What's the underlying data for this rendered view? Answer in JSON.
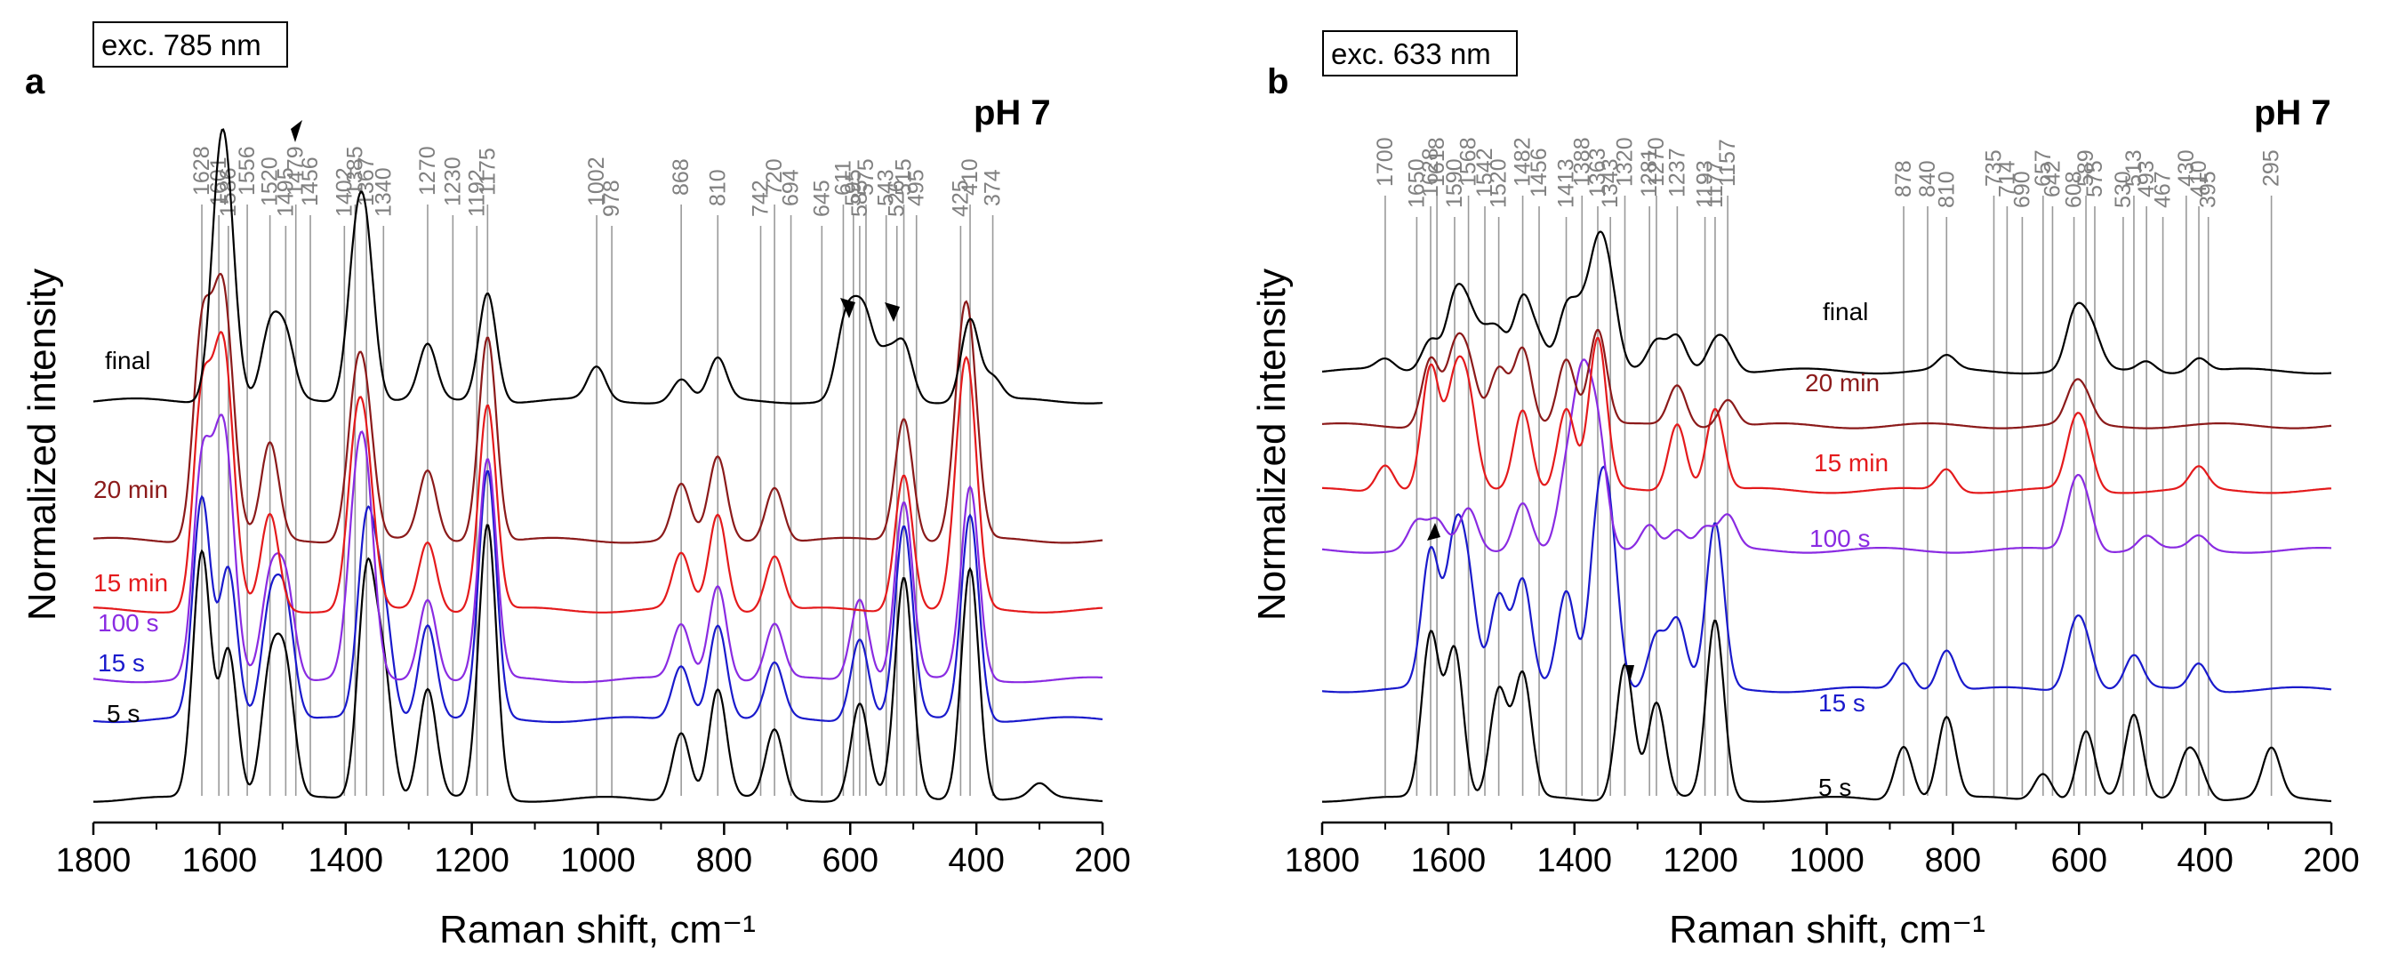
{
  "chart_data": [
    {
      "type": "line",
      "panel": "a",
      "excitation": "exc. 785 nm",
      "ph_label": "pH 7",
      "xlabel": "Raman shift, cm⁻¹",
      "ylabel": "Normalized intensity",
      "xlim": [
        1800,
        200
      ],
      "xticks": [
        1800,
        1600,
        1400,
        1200,
        1000,
        800,
        600,
        400,
        200
      ],
      "series": [
        {
          "name": "5 s",
          "color": "#000000",
          "offset": 0,
          "peaks": [
            [
              1628,
              0.9
            ],
            [
              1586,
              0.55
            ],
            [
              1520,
              0.45
            ],
            [
              1495,
              0.45
            ],
            [
              1367,
              0.8
            ],
            [
              1340,
              0.45
            ],
            [
              1270,
              0.4
            ],
            [
              1175,
              1.0
            ],
            [
              868,
              0.25
            ],
            [
              810,
              0.4
            ],
            [
              720,
              0.25
            ],
            [
              585,
              0.35
            ],
            [
              515,
              0.8
            ],
            [
              410,
              0.85
            ],
            [
              300,
              0.05
            ]
          ]
        },
        {
          "name": "15 s",
          "color": "#1a1acc",
          "offset": 0.16,
          "peaks": [
            [
              1628,
              0.8
            ],
            [
              1586,
              0.55
            ],
            [
              1520,
              0.4
            ],
            [
              1495,
              0.4
            ],
            [
              1367,
              0.7
            ],
            [
              1340,
              0.4
            ],
            [
              1270,
              0.35
            ],
            [
              1175,
              0.9
            ],
            [
              868,
              0.2
            ],
            [
              810,
              0.35
            ],
            [
              720,
              0.2
            ],
            [
              585,
              0.3
            ],
            [
              515,
              0.7
            ],
            [
              410,
              0.75
            ]
          ]
        },
        {
          "name": "100 s",
          "color": "#8a2be2",
          "offset": 0.24,
          "peaks": [
            [
              1628,
              0.75
            ],
            [
              1601,
              0.55
            ],
            [
              1586,
              0.5
            ],
            [
              1520,
              0.35
            ],
            [
              1495,
              0.35
            ],
            [
              1385,
              0.5
            ],
            [
              1367,
              0.6
            ],
            [
              1270,
              0.3
            ],
            [
              1175,
              0.8
            ],
            [
              868,
              0.2
            ],
            [
              810,
              0.35
            ],
            [
              720,
              0.2
            ],
            [
              585,
              0.3
            ],
            [
              515,
              0.65
            ],
            [
              410,
              0.7
            ]
          ]
        },
        {
          "name": "15 min",
          "color": "#e41a1c",
          "offset": 0.38,
          "peaks": [
            [
              1628,
              0.75
            ],
            [
              1601,
              0.6
            ],
            [
              1586,
              0.5
            ],
            [
              1520,
              0.35
            ],
            [
              1385,
              0.5
            ],
            [
              1367,
              0.45
            ],
            [
              1270,
              0.25
            ],
            [
              1175,
              0.75
            ],
            [
              868,
              0.2
            ],
            [
              810,
              0.35
            ],
            [
              720,
              0.2
            ],
            [
              515,
              0.5
            ],
            [
              425,
              0.45
            ],
            [
              410,
              0.6
            ]
          ]
        },
        {
          "name": "20 min",
          "color": "#8b1a1a",
          "offset": 0.52,
          "peaks": [
            [
              1628,
              0.75
            ],
            [
              1601,
              0.6
            ],
            [
              1586,
              0.45
            ],
            [
              1520,
              0.35
            ],
            [
              1385,
              0.45
            ],
            [
              1367,
              0.4
            ],
            [
              1270,
              0.25
            ],
            [
              1175,
              0.75
            ],
            [
              868,
              0.2
            ],
            [
              810,
              0.3
            ],
            [
              720,
              0.2
            ],
            [
              515,
              0.45
            ],
            [
              425,
              0.45
            ],
            [
              410,
              0.55
            ]
          ]
        },
        {
          "name": "final",
          "color": "#000000",
          "offset": 0.8,
          "peaks": [
            [
              1601,
              0.65
            ],
            [
              1586,
              0.5
            ],
            [
              1520,
              0.25
            ],
            [
              1495,
              0.22
            ],
            [
              1385,
              0.45
            ],
            [
              1367,
              0.5
            ],
            [
              1270,
              0.2
            ],
            [
              1175,
              0.4
            ],
            [
              1002,
              0.12
            ],
            [
              868,
              0.08
            ],
            [
              810,
              0.15
            ],
            [
              611,
              0.2
            ],
            [
              595,
              0.18
            ],
            [
              575,
              0.25
            ],
            [
              543,
              0.15
            ],
            [
              515,
              0.2
            ],
            [
              410,
              0.3
            ],
            [
              374,
              0.08
            ]
          ]
        }
      ],
      "peak_labels": [
        {
          "x": 1628,
          "label": "1628"
        },
        {
          "x": 1601,
          "label": "1601"
        },
        {
          "x": 1586,
          "label": "1586"
        },
        {
          "x": 1556,
          "label": "1556"
        },
        {
          "x": 1520,
          "label": "1520"
        },
        {
          "x": 1495,
          "label": "1495"
        },
        {
          "x": 1479,
          "label": "1479"
        },
        {
          "x": 1456,
          "label": "1456"
        },
        {
          "x": 1402,
          "label": "1402"
        },
        {
          "x": 1385,
          "label": "1385"
        },
        {
          "x": 1367,
          "label": "1367"
        },
        {
          "x": 1340,
          "label": "1340"
        },
        {
          "x": 1270,
          "label": "1270"
        },
        {
          "x": 1230,
          "label": "1230"
        },
        {
          "x": 1192,
          "label": "1192"
        },
        {
          "x": 1175,
          "label": "1175"
        },
        {
          "x": 1002,
          "label": "1002"
        },
        {
          "x": 978,
          "label": "978"
        },
        {
          "x": 868,
          "label": "868"
        },
        {
          "x": 810,
          "label": "810"
        },
        {
          "x": 742,
          "label": "742"
        },
        {
          "x": 720,
          "label": "720"
        },
        {
          "x": 694,
          "label": "694"
        },
        {
          "x": 645,
          "label": "645"
        },
        {
          "x": 611,
          "label": "611"
        },
        {
          "x": 595,
          "label": "595"
        },
        {
          "x": 585,
          "label": "585"
        },
        {
          "x": 575,
          "label": "575"
        },
        {
          "x": 543,
          "label": "543"
        },
        {
          "x": 526,
          "label": "526"
        },
        {
          "x": 515,
          "label": "515"
        },
        {
          "x": 495,
          "label": "495"
        },
        {
          "x": 425,
          "label": "425"
        },
        {
          "x": 410,
          "label": "410"
        },
        {
          "x": 374,
          "label": "374"
        }
      ]
    },
    {
      "type": "line",
      "panel": "b",
      "excitation": "exc. 633 nm",
      "ph_label": "pH 7",
      "xlabel": "Raman shift, cm⁻¹",
      "ylabel": "Normalized intensity",
      "xlim": [
        1800,
        200
      ],
      "xticks": [
        1800,
        1600,
        1400,
        1200,
        1000,
        800,
        600,
        400,
        200
      ],
      "series": [
        {
          "name": "5 s",
          "color": "#000000",
          "offset": 0,
          "peaks": [
            [
              1628,
              0.6
            ],
            [
              1590,
              0.55
            ],
            [
              1520,
              0.4
            ],
            [
              1482,
              0.45
            ],
            [
              1320,
              0.5
            ],
            [
              1270,
              0.35
            ],
            [
              1177,
              0.65
            ],
            [
              878,
              0.2
            ],
            [
              810,
              0.3
            ],
            [
              657,
              0.1
            ],
            [
              589,
              0.25
            ],
            [
              513,
              0.3
            ],
            [
              430,
              0.15
            ],
            [
              410,
              0.1
            ],
            [
              295,
              0.18
            ]
          ]
        },
        {
          "name": "15 s",
          "color": "#1a1acc",
          "offset": 0.22,
          "peaks": [
            [
              1628,
              0.5
            ],
            [
              1590,
              0.5
            ],
            [
              1568,
              0.35
            ],
            [
              1520,
              0.35
            ],
            [
              1482,
              0.4
            ],
            [
              1413,
              0.35
            ],
            [
              1363,
              0.55
            ],
            [
              1343,
              0.5
            ],
            [
              1270,
              0.2
            ],
            [
              1237,
              0.25
            ],
            [
              1177,
              0.6
            ],
            [
              878,
              0.1
            ],
            [
              810,
              0.15
            ],
            [
              608,
              0.2
            ],
            [
              589,
              0.15
            ],
            [
              513,
              0.12
            ],
            [
              410,
              0.1
            ]
          ]
        },
        {
          "name": "100 s",
          "color": "#8a2be2",
          "offset": 0.5,
          "peaks": [
            [
              1650,
              0.1
            ],
            [
              1618,
              0.1
            ],
            [
              1568,
              0.15
            ],
            [
              1482,
              0.18
            ],
            [
              1413,
              0.25
            ],
            [
              1388,
              0.55
            ],
            [
              1363,
              0.4
            ],
            [
              1281,
              0.1
            ],
            [
              1237,
              0.08
            ],
            [
              1193,
              0.08
            ],
            [
              1157,
              0.12
            ],
            [
              608,
              0.2
            ],
            [
              589,
              0.15
            ],
            [
              493,
              0.05
            ],
            [
              410,
              0.05
            ]
          ]
        },
        {
          "name": "15 min",
          "color": "#e41a1c",
          "offset": 0.62,
          "peaks": [
            [
              1700,
              0.1
            ],
            [
              1628,
              0.45
            ],
            [
              1590,
              0.35
            ],
            [
              1568,
              0.3
            ],
            [
              1482,
              0.3
            ],
            [
              1413,
              0.3
            ],
            [
              1363,
              0.55
            ],
            [
              1237,
              0.25
            ],
            [
              1177,
              0.3
            ],
            [
              810,
              0.08
            ],
            [
              608,
              0.2
            ],
            [
              589,
              0.15
            ],
            [
              410,
              0.08
            ]
          ]
        },
        {
          "name": "20 min",
          "color": "#8b1a1a",
          "offset": 0.75,
          "peaks": [
            [
              1628,
              0.25
            ],
            [
              1590,
              0.25
            ],
            [
              1568,
              0.2
            ],
            [
              1520,
              0.2
            ],
            [
              1482,
              0.28
            ],
            [
              1413,
              0.25
            ],
            [
              1363,
              0.35
            ],
            [
              1237,
              0.15
            ],
            [
              1157,
              0.1
            ],
            [
              608,
              0.12
            ],
            [
              589,
              0.08
            ]
          ]
        },
        {
          "name": "final",
          "color": "#000000",
          "offset": 0.86,
          "peaks": [
            [
              1700,
              0.04
            ],
            [
              1628,
              0.12
            ],
            [
              1590,
              0.25
            ],
            [
              1568,
              0.18
            ],
            [
              1542,
              0.1
            ],
            [
              1520,
              0.12
            ],
            [
              1482,
              0.25
            ],
            [
              1456,
              0.1
            ],
            [
              1413,
              0.22
            ],
            [
              1388,
              0.18
            ],
            [
              1363,
              0.38
            ],
            [
              1343,
              0.25
            ],
            [
              1270,
              0.1
            ],
            [
              1237,
              0.12
            ],
            [
              1177,
              0.1
            ],
            [
              1157,
              0.08
            ],
            [
              810,
              0.05
            ],
            [
              608,
              0.18
            ],
            [
              589,
              0.1
            ],
            [
              575,
              0.08
            ],
            [
              493,
              0.04
            ],
            [
              410,
              0.05
            ]
          ]
        }
      ],
      "peak_labels": [
        {
          "x": 1700,
          "label": "1700"
        },
        {
          "x": 1628,
          "label": "1628"
        },
        {
          "x": 1590,
          "label": "1590"
        },
        {
          "x": 1568,
          "label": "1568"
        },
        {
          "x": 1542,
          "label": "1542"
        },
        {
          "x": 1520,
          "label": "1520"
        },
        {
          "x": 1482,
          "label": "1482"
        },
        {
          "x": 1456,
          "label": "1456"
        },
        {
          "x": 1413,
          "label": "1413"
        },
        {
          "x": 1388,
          "label": "1388"
        },
        {
          "x": 1363,
          "label": "1363"
        },
        {
          "x": 1343,
          "label": "1343"
        },
        {
          "x": 1270,
          "label": "1270"
        },
        {
          "x": 1237,
          "label": "1237"
        },
        {
          "x": 1177,
          "label": "1177"
        },
        {
          "x": 1157,
          "label": "1157"
        },
        {
          "x": 878,
          "label": "878"
        },
        {
          "x": 810,
          "label": "810"
        },
        {
          "x": 735,
          "label": "735"
        },
        {
          "x": 714,
          "label": "714"
        },
        {
          "x": 690,
          "label": "690"
        },
        {
          "x": 657,
          "label": "657"
        },
        {
          "x": 642,
          "label": "642"
        },
        {
          "x": 608,
          "label": "608"
        },
        {
          "x": 589,
          "label": "589"
        },
        {
          "x": 575,
          "label": "575"
        },
        {
          "x": 530,
          "label": "530"
        },
        {
          "x": 513,
          "label": "513"
        },
        {
          "x": 493,
          "label": "493"
        },
        {
          "x": 467,
          "label": "467"
        },
        {
          "x": 430,
          "label": "430"
        },
        {
          "x": 410,
          "label": "410"
        },
        {
          "x": 395,
          "label": "395"
        },
        {
          "x": 295,
          "label": "295"
        },
        {
          "x": 840,
          "label": "840"
        },
        {
          "x": 1650,
          "label": "1650"
        },
        {
          "x": 1618,
          "label": "1618"
        },
        {
          "x": 1281,
          "label": "1281"
        },
        {
          "x": 1193,
          "label": "1193"
        },
        {
          "x": 1320,
          "label": "1320"
        }
      ]
    }
  ]
}
